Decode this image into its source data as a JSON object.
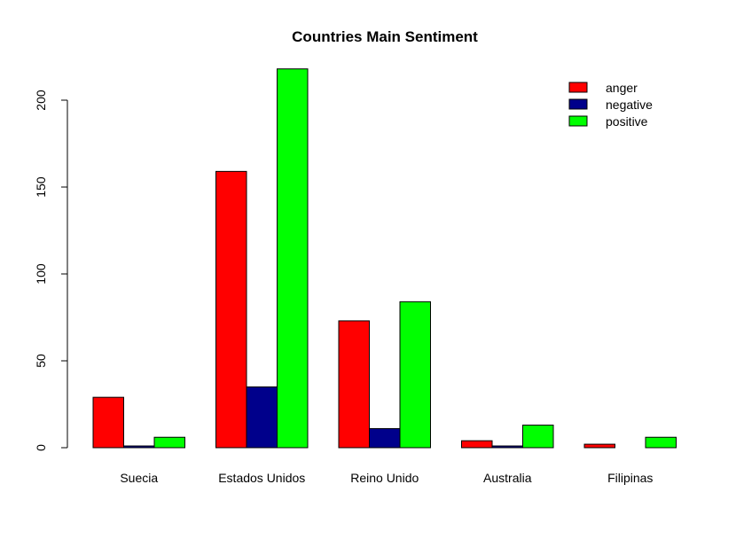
{
  "chart_data": {
    "type": "bar",
    "title": "Countries Main Sentiment",
    "xlabel": "",
    "ylabel": "",
    "categories": [
      "Suecia",
      "Estados Unidos",
      "Reino Unido",
      "Australia",
      "Filipinas"
    ],
    "series": [
      {
        "name": "anger",
        "color": "#ff0000",
        "values": [
          29,
          159,
          73,
          4,
          2
        ]
      },
      {
        "name": "negative",
        "color": "#00008b",
        "values": [
          1,
          35,
          11,
          1,
          0
        ]
      },
      {
        "name": "positive",
        "color": "#00ff00",
        "values": [
          6,
          218,
          84,
          13,
          6
        ]
      }
    ],
    "yticks": [
      0,
      50,
      100,
      150,
      200
    ],
    "ylim": [
      0,
      218
    ],
    "grid": false,
    "legend_position": "top-right"
  }
}
